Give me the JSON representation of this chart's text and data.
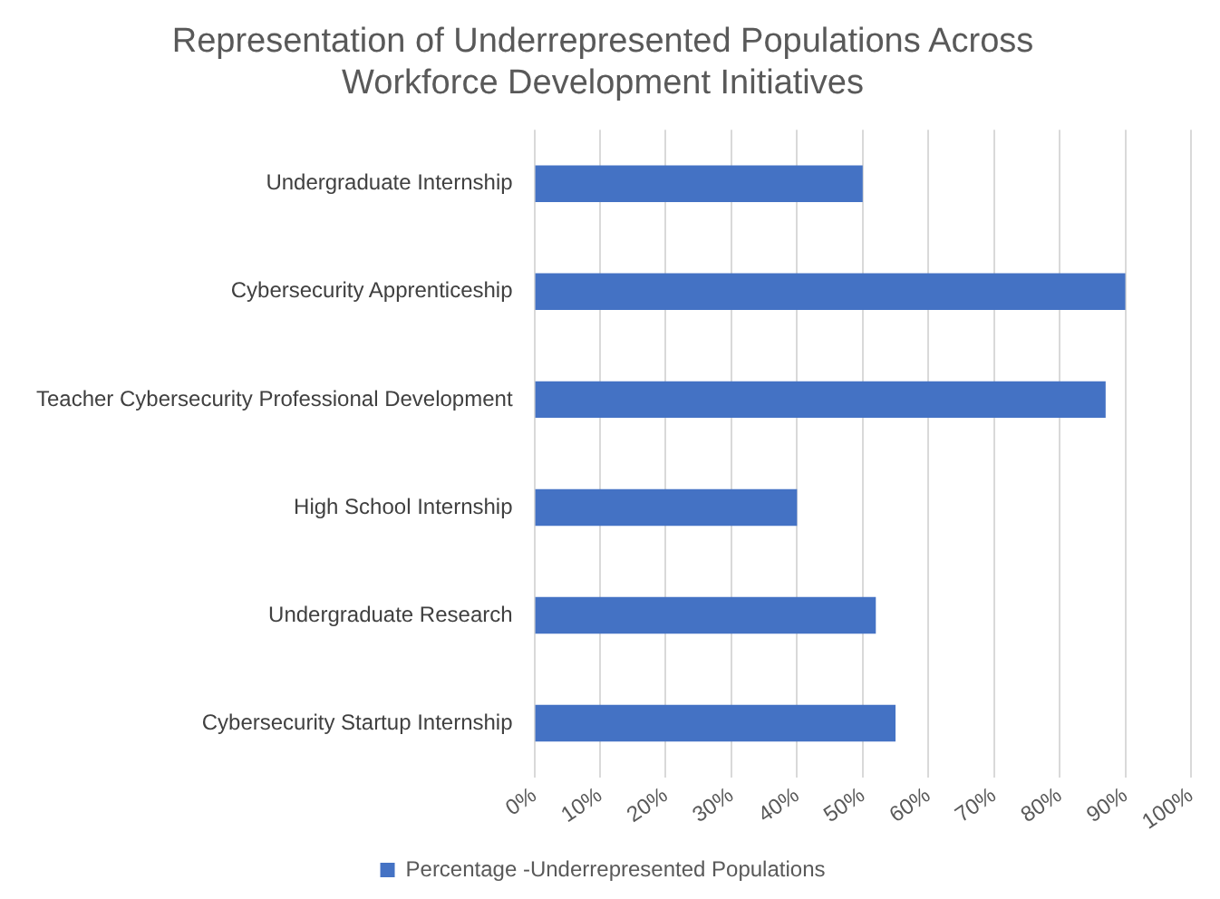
{
  "chart_data": {
    "type": "bar",
    "orientation": "horizontal",
    "title": "Representation of Underrepresented Populations Across Workforce Development Initiatives",
    "categories": [
      "Undergraduate Internship",
      "Cybersecurity Apprenticeship",
      "Teacher Cybersecurity Professional Development",
      "High School Internship",
      "Undergraduate Research",
      "Cybersecurity Startup Internship"
    ],
    "series": [
      {
        "name": "Percentage -Underrepresented Populations",
        "color": "#4472c4",
        "values": [
          50,
          90,
          87,
          40,
          52,
          55
        ]
      }
    ],
    "xlim": [
      0,
      100
    ],
    "xticks": [
      {
        "value": 0,
        "label": "0%"
      },
      {
        "value": 10,
        "label": "10%"
      },
      {
        "value": 20,
        "label": "20%"
      },
      {
        "value": 30,
        "label": "30%"
      },
      {
        "value": 40,
        "label": "40%"
      },
      {
        "value": 50,
        "label": "50%"
      },
      {
        "value": 60,
        "label": "60%"
      },
      {
        "value": 70,
        "label": "70%"
      },
      {
        "value": 80,
        "label": "80%"
      },
      {
        "value": 90,
        "label": "90%"
      },
      {
        "value": 100,
        "label": "100%"
      }
    ],
    "grid": "x",
    "legend": "bottom"
  }
}
